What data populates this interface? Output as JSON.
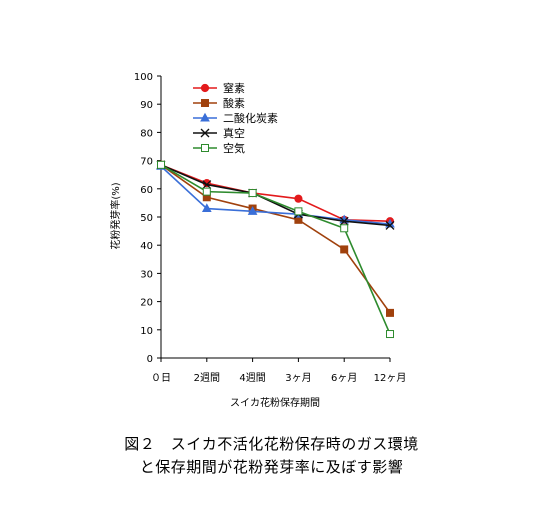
{
  "chart_data": {
    "type": "line",
    "categories": [
      "０日",
      "2週間",
      "4週間",
      "3ヶ月",
      "6ヶ月",
      "12ヶ月"
    ],
    "ylabel": "花粉発芽率(%)",
    "xlabel": "スイカ花粉保存期間",
    "ylim": [
      0,
      100
    ],
    "yticks": [
      0,
      10,
      20,
      30,
      40,
      50,
      60,
      70,
      80,
      90,
      100
    ],
    "grid": false,
    "legend_position": "top-left",
    "series": [
      {
        "name": "窒素",
        "color": "#e31a1c",
        "marker": "circle",
        "values": [
          68.5,
          62,
          58.5,
          56.5,
          49,
          48.5
        ]
      },
      {
        "name": "酸素",
        "color": "#a0410d",
        "marker": "square",
        "values": [
          68.5,
          57,
          53,
          49,
          38.5,
          16
        ]
      },
      {
        "name": "二酸化炭素",
        "color": "#3a6fd8",
        "marker": "triangle",
        "values": [
          68,
          53,
          52,
          51,
          49,
          47.5
        ]
      },
      {
        "name": "真空",
        "color": "#111111",
        "marker": "x",
        "values": [
          68.5,
          61.5,
          58.5,
          51,
          48.5,
          47
        ]
      },
      {
        "name": "空気",
        "color": "#2e8b2e",
        "marker": "hollow-square",
        "values": [
          68.5,
          59,
          58.5,
          52,
          46,
          8.5
        ]
      }
    ]
  },
  "caption": {
    "line1": "図２　スイカ不活化花粉保存時のガス環境",
    "line2": "と保存期間が花粉発芽率に及ぼす影響"
  }
}
